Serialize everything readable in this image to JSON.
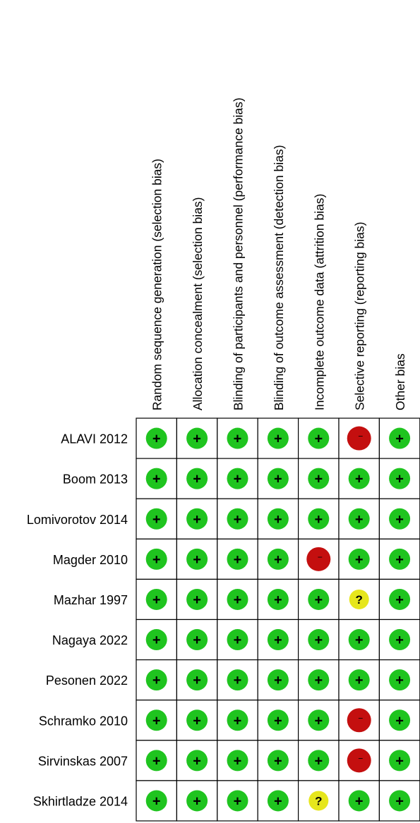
{
  "chart_data": {
    "type": "table",
    "columns": [
      "Random sequence generation (selection bias)",
      "Allocation concealment (selection bias)",
      "Blinding of participants and personnel (performance bias)",
      "Blinding of outcome assessment (detection bias)",
      "Incomplete outcome data (attrition bias)",
      "Selective reporting (reporting bias)",
      "Other bias"
    ],
    "rows": [
      {
        "study": "ALAVI 2012",
        "ratings": [
          "+",
          "+",
          "+",
          "+",
          "+",
          "-",
          "+"
        ]
      },
      {
        "study": "Boom 2013",
        "ratings": [
          "+",
          "+",
          "+",
          "+",
          "+",
          "+",
          "+"
        ]
      },
      {
        "study": "Lomivorotov 2014",
        "ratings": [
          "+",
          "+",
          "+",
          "+",
          "+",
          "+",
          "+"
        ]
      },
      {
        "study": "Magder 2010",
        "ratings": [
          "+",
          "+",
          "+",
          "+",
          "-",
          "+",
          "+"
        ]
      },
      {
        "study": "Mazhar 1997",
        "ratings": [
          "+",
          "+",
          "+",
          "+",
          "+",
          "?",
          "+"
        ]
      },
      {
        "study": "Nagaya 2022",
        "ratings": [
          "+",
          "+",
          "+",
          "+",
          "+",
          "+",
          "+"
        ]
      },
      {
        "study": "Pesonen 2022",
        "ratings": [
          "+",
          "+",
          "+",
          "+",
          "+",
          "+",
          "+"
        ]
      },
      {
        "study": "Schramko 2010",
        "ratings": [
          "+",
          "+",
          "+",
          "+",
          "+",
          "-",
          "+"
        ]
      },
      {
        "study": "Sirvinskas 2007",
        "ratings": [
          "+",
          "+",
          "+",
          "+",
          "+",
          "-",
          "+"
        ]
      },
      {
        "study": "Skhirtladze 2014",
        "ratings": [
          "+",
          "+",
          "+",
          "+",
          "?",
          "+",
          "+"
        ]
      }
    ],
    "legend_map": {
      "+": {
        "label": "+",
        "color": "#1fc41f"
      },
      "-": {
        "label": "−",
        "color": "#c40f0f"
      },
      "?": {
        "label": "?",
        "color": "#e6e61c"
      }
    }
  }
}
